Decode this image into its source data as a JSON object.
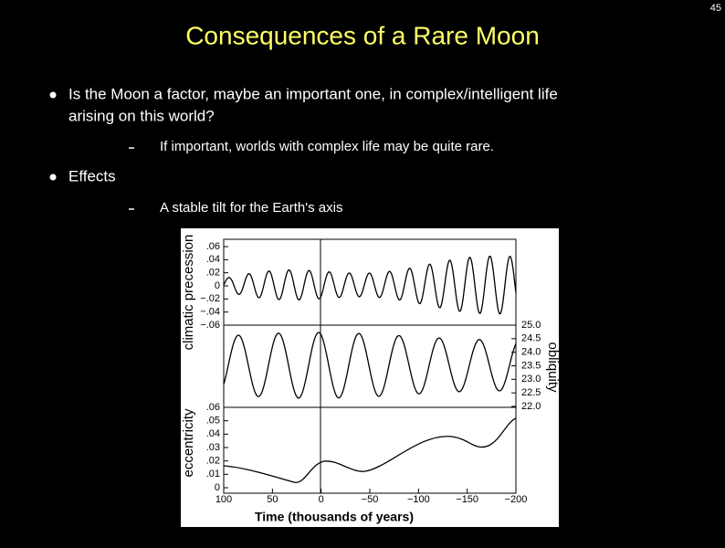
{
  "header": {
    "page_number": "45",
    "title": "Consequences of a Rare Moon"
  },
  "bullets": [
    {
      "text": [
        "Is the Moon a factor, maybe an important one, in complex/intelligent life",
        "arising on this world?"
      ],
      "sub": [
        "If important, worlds with complex life may be quite rare."
      ]
    },
    {
      "text": [
        "Effects"
      ],
      "sub": [
        "A stable tilt for the Earth's axis"
      ]
    }
  ],
  "figure": {
    "x_label": "Time (thousands of years)",
    "x_ticks": [
      "100",
      "50",
      "0",
      "−50",
      "−100",
      "−150",
      "−200"
    ],
    "precession_label": "climatic precession",
    "precession_ticks": [
      ".06",
      ".04",
      ".02",
      "0",
      "−.02",
      "−.04",
      "−.06"
    ],
    "obliquity_label": "obliquity",
    "obliquity_ticks": [
      "25.0",
      "24.5",
      "24.0",
      "23.5",
      "23.0",
      "22.5",
      "22.0"
    ],
    "eccentricity_label": "eccentricity",
    "eccentricity_ticks": [
      ".06",
      ".05",
      ".04",
      ".03",
      ".02",
      ".01",
      "0"
    ]
  }
}
